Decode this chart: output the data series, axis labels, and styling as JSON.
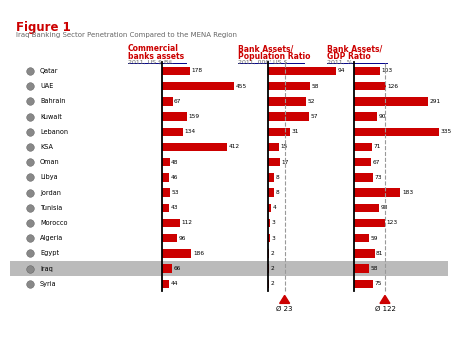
{
  "title": "Figure 1",
  "subtitle": "Iraq Banking Sector Penetration Compared to the MENA Region",
  "countries": [
    "Qatar",
    "UAE",
    "Bahrain",
    "Kuwait",
    "Lebanon",
    "KSA",
    "Oman",
    "Libya",
    "Jordan",
    "Tunisia",
    "Morocco",
    "Algeria",
    "Egypt",
    "Iraq",
    "Syria"
  ],
  "col1_label_line1": "Commercial",
  "col1_label_line2": "banks assets",
  "col1_sub": "2011, US $ Bil.",
  "col2_label_line1": "Bank Assets/",
  "col2_label_line2": "Population Ratio",
  "col2_sub": "2011, 000' US $",
  "col3_label_line1": "Bank Assets/",
  "col3_label_line2": "GDP Ratio",
  "col3_sub": "2011, %",
  "col1_values": [
    178,
    455,
    67,
    159,
    134,
    412,
    48,
    46,
    53,
    43,
    112,
    96,
    186,
    66,
    44
  ],
  "col2_values": [
    94,
    58,
    52,
    57,
    31,
    15,
    17,
    8,
    8,
    4,
    3,
    3,
    2,
    2,
    2
  ],
  "col3_values": [
    103,
    126,
    291,
    90,
    335,
    71,
    67,
    73,
    183,
    98,
    123,
    59,
    81,
    58,
    75
  ],
  "col1_max": 455,
  "col2_max": 94,
  "col3_max": 335,
  "avg2": 23,
  "avg3": 122,
  "bar_color": "#cc0000",
  "iraq_idx": 13,
  "iraq_bg": "#bbbbbb",
  "title_color": "#cc0000",
  "subtitle_color": "#666666",
  "header_color": "#cc0000",
  "subheader_color": "#666666",
  "underline_color": "#00008B",
  "avg_color": "#cc0000",
  "dashed_color": "#999999"
}
